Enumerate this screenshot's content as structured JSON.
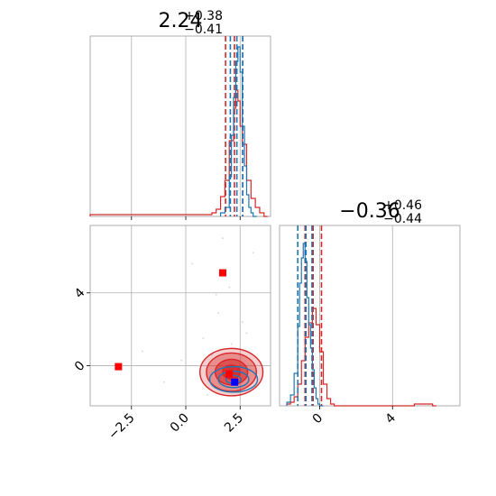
{
  "chart_data": [
    {
      "type": "histogram",
      "panel": "top-left",
      "title": {
        "value": "2.24",
        "upper": "+0.38",
        "lower": "−0.41"
      },
      "xlim": [
        -4.4,
        3.9
      ],
      "grid": true,
      "series": [
        {
          "name": "",
          "color": "#d62728",
          "quantiles": [
            1.83,
            2.24,
            2.62
          ],
          "bins": [
            [
              -4.4,
              0.01
            ],
            [
              1.2,
              0.02
            ],
            [
              1.4,
              0.04
            ],
            [
              1.6,
              0.11
            ],
            [
              1.8,
              0.2
            ],
            [
              2.0,
              0.42
            ],
            [
              2.2,
              0.6
            ],
            [
              2.3,
              0.7
            ],
            [
              2.4,
              0.64
            ],
            [
              2.5,
              0.5
            ],
            [
              2.6,
              0.4
            ],
            [
              2.8,
              0.2
            ],
            [
              3.0,
              0.1
            ],
            [
              3.2,
              0.05
            ],
            [
              3.4,
              0.02
            ],
            [
              3.6,
              0.0
            ]
          ]
        },
        {
          "name": "",
          "color": "#1f77b4",
          "quantiles": [
            2.05,
            2.35,
            2.62
          ],
          "bins": [
            [
              1.6,
              0.02
            ],
            [
              1.8,
              0.05
            ],
            [
              2.0,
              0.22
            ],
            [
              2.1,
              0.45
            ],
            [
              2.2,
              0.66
            ],
            [
              2.3,
              0.86
            ],
            [
              2.4,
              0.94
            ],
            [
              2.5,
              0.8
            ],
            [
              2.6,
              0.5
            ],
            [
              2.7,
              0.28
            ],
            [
              2.8,
              0.12
            ],
            [
              2.9,
              0.05
            ],
            [
              3.0,
              0.02
            ],
            [
              3.1,
              0.0
            ]
          ]
        }
      ]
    },
    {
      "type": "scatter",
      "panel": "bottom-left",
      "xlim": [
        -4.4,
        3.9
      ],
      "ylim": [
        -2.2,
        7.7
      ],
      "xticks": [
        {
          "value": -2.5,
          "label": "−2.5"
        },
        {
          "value": 0.0,
          "label": "0.0"
        },
        {
          "value": 2.5,
          "label": "2.5"
        }
      ],
      "yticks": [
        {
          "value": 0,
          "label": "0"
        },
        {
          "value": 4,
          "label": "4"
        }
      ],
      "grid": true,
      "markers": [
        {
          "x": 1.7,
          "y": 5.1,
          "color": "#ff0000"
        },
        {
          "x": -3.1,
          "y": -0.05,
          "color": "#ff0000"
        },
        {
          "x": 2.0,
          "y": -0.45,
          "color": "#ff0000"
        },
        {
          "x": 2.25,
          "y": -0.9,
          "color": "#0000ff"
        }
      ],
      "contours": [
        {
          "color": "#d62728",
          "center": [
            2.1,
            -0.35
          ],
          "levels": [
            [
              1.45,
              1.3
            ],
            [
              1.15,
              1.05
            ],
            [
              0.75,
              0.7
            ],
            [
              0.4,
              0.38
            ]
          ]
        },
        {
          "color": "#1f77b4",
          "center": [
            2.2,
            -0.75
          ],
          "levels": [
            [
              1.1,
              0.7
            ],
            [
              0.7,
              0.45
            ],
            [
              0.35,
              0.22
            ]
          ]
        }
      ]
    },
    {
      "type": "histogram",
      "panel": "bottom-right",
      "title": {
        "value": "−0.36",
        "upper": "+0.46",
        "lower": "−0.44"
      },
      "xlim": [
        -2.2,
        7.7
      ],
      "xticks": [
        {
          "value": 0,
          "label": "0"
        },
        {
          "value": 4,
          "label": "4"
        }
      ],
      "grid": true,
      "series": [
        {
          "name": "",
          "color": "#d62728",
          "quantiles": [
            -0.8,
            -0.36,
            0.1
          ],
          "bins": [
            [
              -1.8,
              0.01
            ],
            [
              -1.6,
              0.02
            ],
            [
              -1.4,
              0.05
            ],
            [
              -1.2,
              0.12
            ],
            [
              -1.0,
              0.25
            ],
            [
              -0.8,
              0.38
            ],
            [
              -0.6,
              0.46
            ],
            [
              -0.4,
              0.54
            ],
            [
              -0.2,
              0.45
            ],
            [
              0.0,
              0.3
            ],
            [
              0.2,
              0.12
            ],
            [
              0.4,
              0.04
            ],
            [
              0.6,
              0.01
            ],
            [
              0.8,
              0.0
            ],
            [
              5.2,
              0.01
            ],
            [
              5.6,
              0.01
            ],
            [
              6.2,
              0.0
            ]
          ]
        },
        {
          "name": "",
          "color": "#1f77b4",
          "quantiles": [
            -1.2,
            -0.75,
            -0.42
          ],
          "bins": [
            [
              -1.8,
              0.02
            ],
            [
              -1.6,
              0.06
            ],
            [
              -1.4,
              0.18
            ],
            [
              -1.2,
              0.44
            ],
            [
              -1.1,
              0.68
            ],
            [
              -1.0,
              0.82
            ],
            [
              -0.9,
              0.9
            ],
            [
              -0.8,
              0.8
            ],
            [
              -0.7,
              0.6
            ],
            [
              -0.6,
              0.45
            ],
            [
              -0.5,
              0.32
            ],
            [
              -0.4,
              0.2
            ],
            [
              -0.3,
              0.1
            ],
            [
              -0.2,
              0.04
            ],
            [
              -0.1,
              0.01
            ],
            [
              0.0,
              0.0
            ]
          ]
        }
      ]
    }
  ]
}
